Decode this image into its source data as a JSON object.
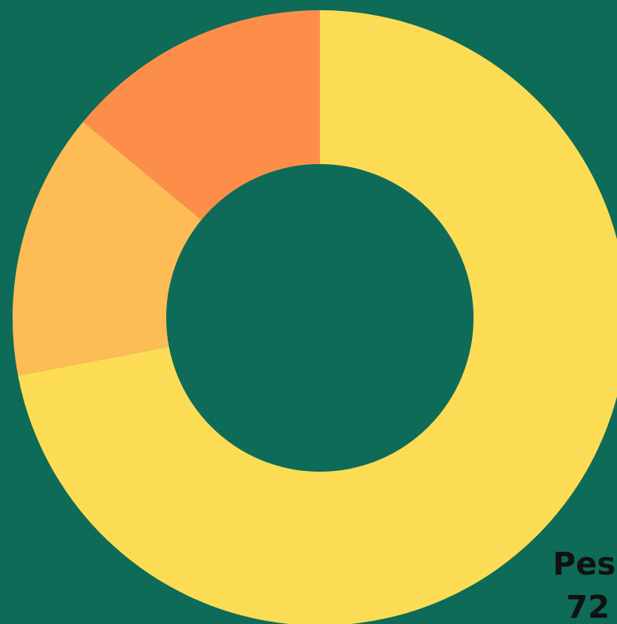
{
  "colors": {
    "background": "#0d6b58",
    "label_text": "#111111"
  },
  "chart_data": {
    "type": "pie",
    "donut": true,
    "start_angle_deg": 0,
    "direction": "clockwise",
    "slices": [
      {
        "label": "Pes",
        "value": 72,
        "color": "#fddc55"
      },
      {
        "label": "",
        "value": 14,
        "color": "#fdbc56"
      },
      {
        "label": "",
        "value": 14,
        "color": "#fd8e4a"
      }
    ],
    "legend": "none",
    "grid": false
  }
}
